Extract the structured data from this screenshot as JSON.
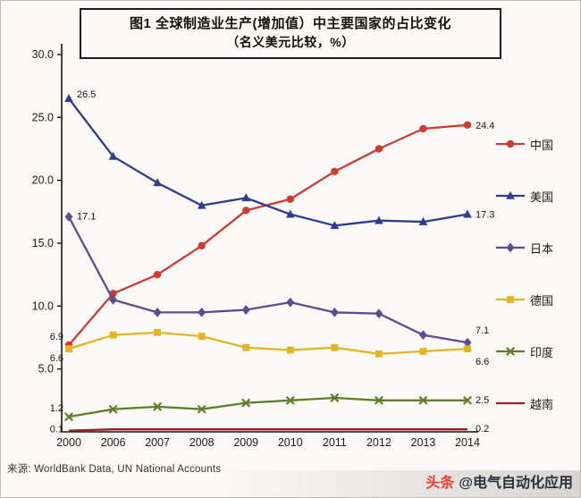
{
  "title": {
    "line1": "图1 全球制造业生产(增加值）中主要国家的占比变化",
    "line2": "（名义美元比较，%）"
  },
  "footer": {
    "source": "来源: WorldBank Data, UN National Accounts"
  },
  "watermark": {
    "logo": "头条",
    "handle": "@电气自动化应用"
  },
  "chart_data": {
    "type": "line",
    "title": "图1 全球制造业生产(增加值）中主要国家的占比变化（名义美元比较，%）",
    "xlabel": "",
    "ylabel": "",
    "categories": [
      "2000",
      "2006",
      "2007",
      "2008",
      "2009",
      "2010",
      "2011",
      "2012",
      "2013",
      "2014"
    ],
    "ylim": [
      0,
      30
    ],
    "yticks": [
      "30.0",
      "25.0",
      "20.0",
      "15.0",
      "10.0",
      "5.0"
    ],
    "grid": false,
    "legend_position": "right",
    "series": [
      {
        "key": "china",
        "name": "中国",
        "color": "#cf3a35",
        "marker": "circle",
        "values": [
          6.9,
          11.0,
          12.5,
          14.8,
          17.6,
          18.5,
          20.7,
          22.5,
          24.1,
          24.4
        ],
        "point_labels": {
          "first": "6.9",
          "last": "24.4"
        }
      },
      {
        "key": "usa",
        "name": "美国",
        "color": "#2f3b94",
        "marker": "triangle",
        "values": [
          26.5,
          21.9,
          19.8,
          18.0,
          18.6,
          17.3,
          16.4,
          16.8,
          16.7,
          17.3
        ],
        "point_labels": {
          "first": "26.5",
          "last": "17.3"
        }
      },
      {
        "key": "japan",
        "name": "日本",
        "color": "#5a4d93",
        "marker": "diamond",
        "values": [
          17.1,
          10.5,
          9.5,
          9.5,
          9.7,
          10.3,
          9.5,
          9.4,
          7.7,
          7.1
        ],
        "point_labels": {
          "first": "17.1",
          "last": "7.1"
        }
      },
      {
        "key": "germany",
        "name": "德国",
        "color": "#e6b422",
        "marker": "square",
        "values": [
          6.6,
          7.7,
          7.9,
          7.6,
          6.7,
          6.5,
          6.7,
          6.2,
          6.4,
          6.6
        ],
        "point_labels": {
          "first": "6.6",
          "last": "6.6"
        }
      },
      {
        "key": "india",
        "name": "印度",
        "color": "#617d2b",
        "marker": "x",
        "values": [
          1.2,
          1.8,
          2.0,
          1.8,
          2.3,
          2.5,
          2.7,
          2.5,
          2.5,
          2.5
        ],
        "point_labels": {
          "first": "1.2",
          "last": "2.5"
        }
      },
      {
        "key": "vietnam",
        "name": "越南",
        "color": "#9e1f1f",
        "marker": "none",
        "values": [
          0.1,
          0.2,
          0.2,
          0.2,
          0.2,
          0.2,
          0.2,
          0.2,
          0.2,
          0.2
        ],
        "point_labels": {
          "first": "0.1",
          "last": "0.2"
        }
      }
    ]
  }
}
